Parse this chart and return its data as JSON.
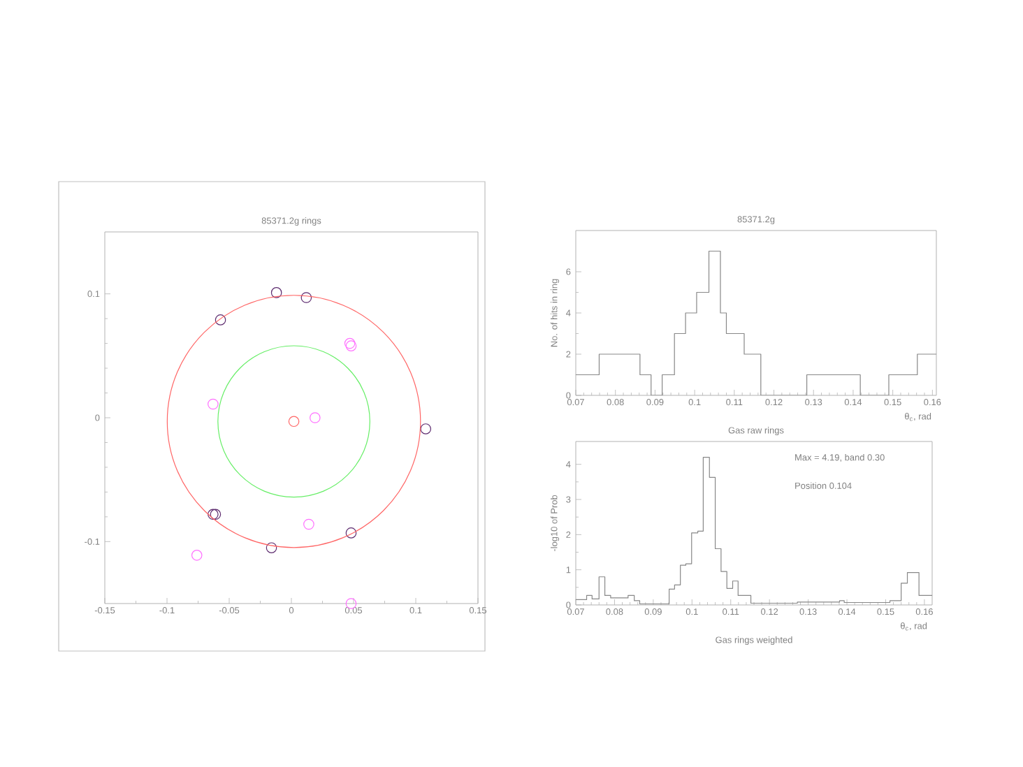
{
  "chart_data": [
    {
      "type": "scatter",
      "title": "85371.2g rings",
      "xlim": [
        -0.15,
        0.15
      ],
      "ylim": [
        -0.15,
        0.15
      ],
      "xticks": [
        -0.15,
        -0.1,
        -0.05,
        0,
        0.05,
        0.1,
        0.15
      ],
      "yticks": [
        -0.1,
        0,
        0.1
      ],
      "series": [
        {
          "type": "scatter",
          "marker": "circle",
          "color": "#5c2a6e",
          "x": [
            -0.012,
            0.012,
            -0.057,
            0.108,
            -0.063,
            -0.061,
            0.048,
            -0.016
          ],
          "values": [
            0.101,
            0.097,
            0.079,
            -0.009,
            -0.078,
            -0.078,
            -0.093,
            -0.105
          ]
        },
        {
          "type": "scatter",
          "marker": "circle",
          "color": "#ff70ff",
          "x": [
            0.047,
            0.048,
            -0.063,
            0.019,
            0.014,
            -0.076,
            0.048
          ],
          "values": [
            0.06,
            0.058,
            0.011,
            0.0,
            -0.086,
            -0.111,
            -0.15
          ]
        },
        {
          "type": "scatter",
          "marker": "circle",
          "color": "#ff6666",
          "x": [
            0.002
          ],
          "values": [
            -0.003
          ]
        }
      ]
    },
    {
      "type": "histogram",
      "title": "85371.2g",
      "xlabel": "θ$_{c}$, rad",
      "ylabel": "No. of hits in ring",
      "annotations": [
        "Gas raw rings"
      ],
      "color": "#888888",
      "xlim": [
        0.07,
        0.161
      ],
      "ylim": [
        0,
        8
      ],
      "xticks": [
        0.07,
        0.08,
        0.09,
        0.1,
        0.11,
        0.12,
        0.13,
        0.14,
        0.15,
        0.16
      ],
      "yticks": [
        0,
        2,
        4,
        6
      ],
      "bins": [
        0.07,
        0.0759,
        0.0862,
        0.089,
        0.0918,
        0.0949,
        0.0977,
        0.1005,
        0.1036,
        0.1065,
        0.108,
        0.1125,
        0.1167,
        0.1283,
        0.1418,
        0.149,
        0.1562,
        0.161
      ],
      "values": [
        1,
        2,
        1,
        0,
        1,
        3,
        4,
        5,
        7,
        4,
        3,
        2,
        0,
        1,
        0,
        1,
        2
      ]
    },
    {
      "type": "histogram",
      "xlabel": "θ$_{c}$, rad",
      "ylabel": "-log10 of Prob",
      "annotations": [
        "Gas rings weighted",
        "Max  = 4.19, band 0.30",
        "Position  0.104"
      ],
      "color": "#888888",
      "xlim": [
        0.07,
        0.162
      ],
      "ylim": [
        0,
        4.65
      ],
      "xticks": [
        0.07,
        0.08,
        0.09,
        0.1,
        0.11,
        0.12,
        0.13,
        0.14,
        0.15,
        0.16
      ],
      "yticks": [
        0,
        1,
        2,
        3,
        4
      ],
      "bins": [
        0.07,
        0.0728,
        0.0742,
        0.076,
        0.0775,
        0.079,
        0.0835,
        0.0851,
        0.0865,
        0.0941,
        0.0955,
        0.097,
        0.0984,
        0.0999,
        0.1015,
        0.1029,
        0.1045,
        0.106,
        0.1075,
        0.109,
        0.1105,
        0.1119,
        0.1152,
        0.1272,
        0.1381,
        0.1393,
        0.1511,
        0.154,
        0.1556,
        0.1586,
        0.162
      ],
      "values": [
        0.15,
        0.27,
        0.17,
        0.8,
        0.27,
        0.2,
        0.27,
        0.12,
        0.03,
        0.45,
        0.57,
        1.13,
        1.17,
        2.05,
        2.1,
        4.2,
        3.63,
        1.6,
        0.95,
        0.47,
        0.68,
        0.27,
        0.05,
        0.08,
        0.12,
        0.07,
        0.12,
        0.62,
        0.92,
        0.27
      ]
    }
  ]
}
